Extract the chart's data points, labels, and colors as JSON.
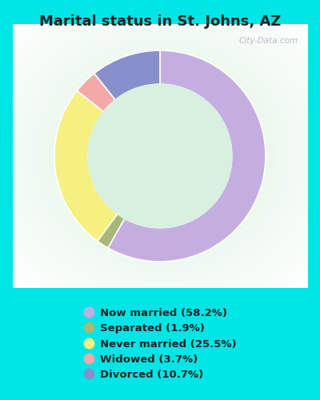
{
  "title": "Marital status in St. Johns, AZ",
  "title_fontsize": 13,
  "background_color": "#00e5e5",
  "chart_bg": "#d8f0e0",
  "slices": [
    {
      "label": "Now married (58.2%)",
      "value": 58.2,
      "color": "#c4aee0"
    },
    {
      "label": "Separated (1.9%)",
      "value": 1.9,
      "color": "#a8b87a"
    },
    {
      "label": "Never married (25.5%)",
      "value": 25.5,
      "color": "#f5f080"
    },
    {
      "label": "Widowed (3.7%)",
      "value": 3.7,
      "color": "#f5a8a8"
    },
    {
      "label": "Divorced (10.7%)",
      "value": 10.7,
      "color": "#8890cc"
    }
  ],
  "legend_fontsize": 9.5,
  "watermark": "City-Data.com",
  "donut_width": 0.32,
  "start_angle": 90
}
